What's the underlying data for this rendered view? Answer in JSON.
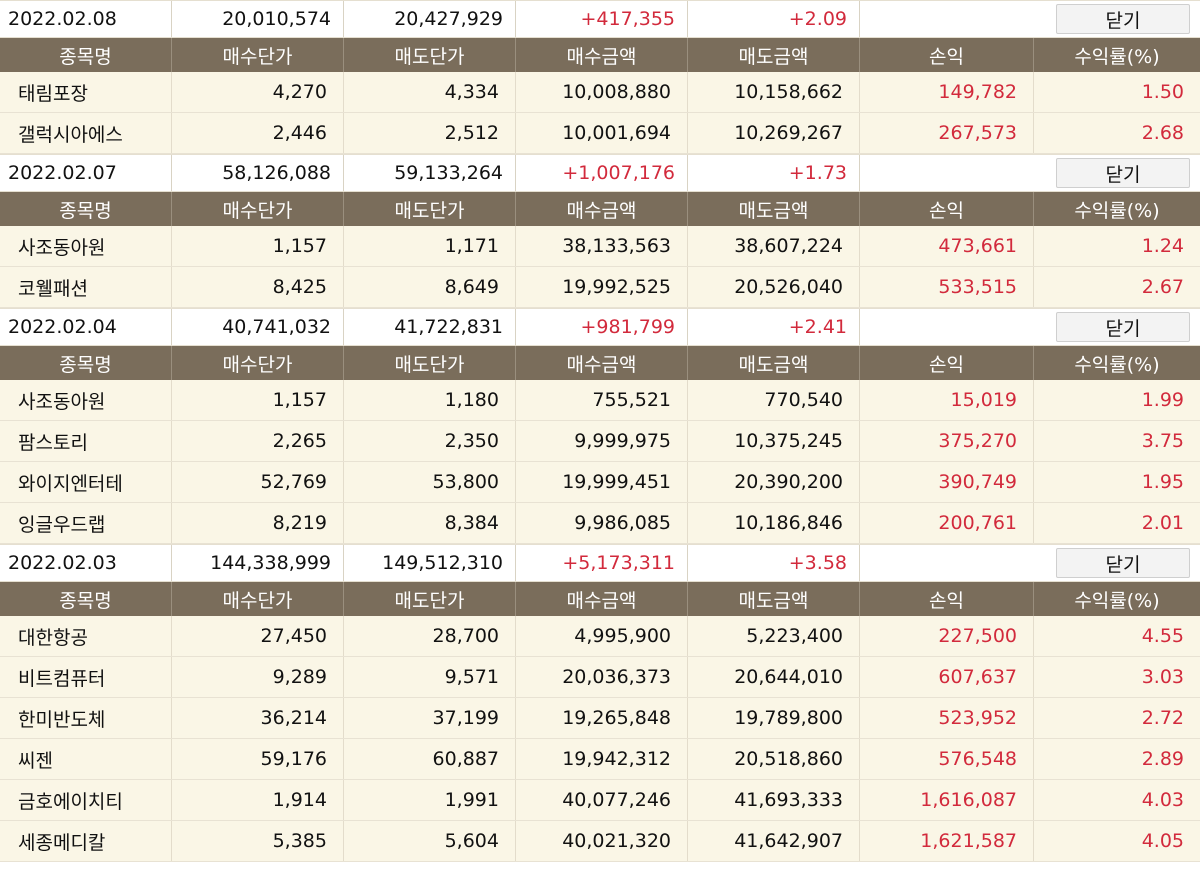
{
  "colors": {
    "header_bg": "#7a6d5b",
    "row_bg": "#faf6e6",
    "profit_red": "#d22a3c"
  },
  "headers": [
    "종목명",
    "매수단가",
    "매도단가",
    "매수금액",
    "매도금액",
    "손익",
    "수익률(%)"
  ],
  "close_label": "닫기",
  "groups": [
    {
      "date": "2022.02.08",
      "buy_total": "20,010,574",
      "sell_total": "20,427,929",
      "profit": "+417,355",
      "rate": "+2.09",
      "rows": [
        {
          "name": "태림포장",
          "buy_price": "4,270",
          "sell_price": "4,334",
          "buy_amount": "10,008,880",
          "sell_amount": "10,158,662",
          "profit": "149,782",
          "rate": "1.50"
        },
        {
          "name": "갤럭시아에스",
          "buy_price": "2,446",
          "sell_price": "2,512",
          "buy_amount": "10,001,694",
          "sell_amount": "10,269,267",
          "profit": "267,573",
          "rate": "2.68"
        }
      ]
    },
    {
      "date": "2022.02.07",
      "buy_total": "58,126,088",
      "sell_total": "59,133,264",
      "profit": "+1,007,176",
      "rate": "+1.73",
      "rows": [
        {
          "name": "사조동아원",
          "buy_price": "1,157",
          "sell_price": "1,171",
          "buy_amount": "38,133,563",
          "sell_amount": "38,607,224",
          "profit": "473,661",
          "rate": "1.24"
        },
        {
          "name": "코웰패션",
          "buy_price": "8,425",
          "sell_price": "8,649",
          "buy_amount": "19,992,525",
          "sell_amount": "20,526,040",
          "profit": "533,515",
          "rate": "2.67"
        }
      ]
    },
    {
      "date": "2022.02.04",
      "buy_total": "40,741,032",
      "sell_total": "41,722,831",
      "profit": "+981,799",
      "rate": "+2.41",
      "rows": [
        {
          "name": "사조동아원",
          "buy_price": "1,157",
          "sell_price": "1,180",
          "buy_amount": "755,521",
          "sell_amount": "770,540",
          "profit": "15,019",
          "rate": "1.99"
        },
        {
          "name": "팜스토리",
          "buy_price": "2,265",
          "sell_price": "2,350",
          "buy_amount": "9,999,975",
          "sell_amount": "10,375,245",
          "profit": "375,270",
          "rate": "3.75"
        },
        {
          "name": "와이지엔터테",
          "buy_price": "52,769",
          "sell_price": "53,800",
          "buy_amount": "19,999,451",
          "sell_amount": "20,390,200",
          "profit": "390,749",
          "rate": "1.95"
        },
        {
          "name": "잉글우드랩",
          "buy_price": "8,219",
          "sell_price": "8,384",
          "buy_amount": "9,986,085",
          "sell_amount": "10,186,846",
          "profit": "200,761",
          "rate": "2.01"
        }
      ]
    },
    {
      "date": "2022.02.03",
      "buy_total": "144,338,999",
      "sell_total": "149,512,310",
      "profit": "+5,173,311",
      "rate": "+3.58",
      "rows": [
        {
          "name": "대한항공",
          "buy_price": "27,450",
          "sell_price": "28,700",
          "buy_amount": "4,995,900",
          "sell_amount": "5,223,400",
          "profit": "227,500",
          "rate": "4.55"
        },
        {
          "name": "비트컴퓨터",
          "buy_price": "9,289",
          "sell_price": "9,571",
          "buy_amount": "20,036,373",
          "sell_amount": "20,644,010",
          "profit": "607,637",
          "rate": "3.03"
        },
        {
          "name": "한미반도체",
          "buy_price": "36,214",
          "sell_price": "37,199",
          "buy_amount": "19,265,848",
          "sell_amount": "19,789,800",
          "profit": "523,952",
          "rate": "2.72"
        },
        {
          "name": "씨젠",
          "buy_price": "59,176",
          "sell_price": "60,887",
          "buy_amount": "19,942,312",
          "sell_amount": "20,518,860",
          "profit": "576,548",
          "rate": "2.89"
        },
        {
          "name": "금호에이치티",
          "buy_price": "1,914",
          "sell_price": "1,991",
          "buy_amount": "40,077,246",
          "sell_amount": "41,693,333",
          "profit": "1,616,087",
          "rate": "4.03"
        },
        {
          "name": "세종메디칼",
          "buy_price": "5,385",
          "sell_price": "5,604",
          "buy_amount": "40,021,320",
          "sell_amount": "41,642,907",
          "profit": "1,621,587",
          "rate": "4.05"
        }
      ]
    }
  ]
}
